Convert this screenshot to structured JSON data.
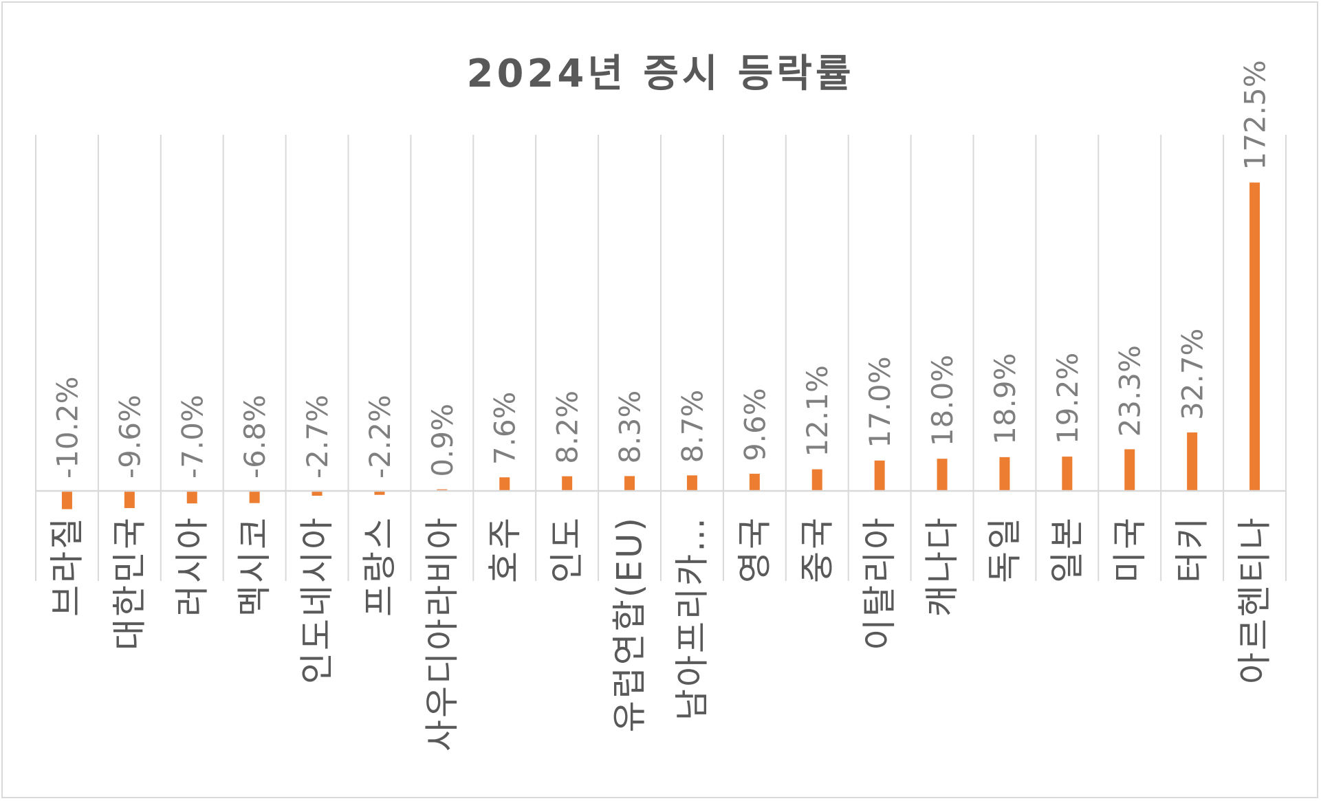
{
  "chart_data": {
    "type": "bar",
    "title": "2024년 증시 등락률",
    "xlabel": "",
    "ylabel": "",
    "categories": [
      "브라질",
      "대한민국",
      "러시아",
      "멕시코",
      "인도네시아",
      "프랑스",
      "사우디아라비아",
      "호주",
      "인도",
      "유럽연합(EU)",
      "남아프리카…",
      "영국",
      "중국",
      "이탈리아",
      "캐나다",
      "독일",
      "일본",
      "미국",
      "터키",
      "아르헨티나"
    ],
    "values": [
      -10.2,
      -9.6,
      -7.0,
      -6.8,
      -2.7,
      -2.2,
      0.9,
      7.6,
      8.2,
      8.3,
      8.7,
      9.6,
      12.1,
      17.0,
      18.0,
      18.9,
      19.2,
      23.3,
      32.7,
      172.5
    ],
    "data_labels": [
      "-10.2%",
      "-9.6%",
      "-7.0%",
      "-6.8%",
      "-2.7%",
      "-2.2%",
      "0.9%",
      "7.6%",
      "8.2%",
      "8.3%",
      "8.7%",
      "9.6%",
      "12.1%",
      "17.0%",
      "18.0%",
      "18.9%",
      "19.2%",
      "23.3%",
      "32.7%",
      "172.5%"
    ],
    "value_unit": "%",
    "grid": "vertical",
    "legend": "none",
    "bar_color": "#ed7d31",
    "gridline_color": "#d9d9d9",
    "text_color": "#595959",
    "data_label_color": "#7f7f7f"
  }
}
